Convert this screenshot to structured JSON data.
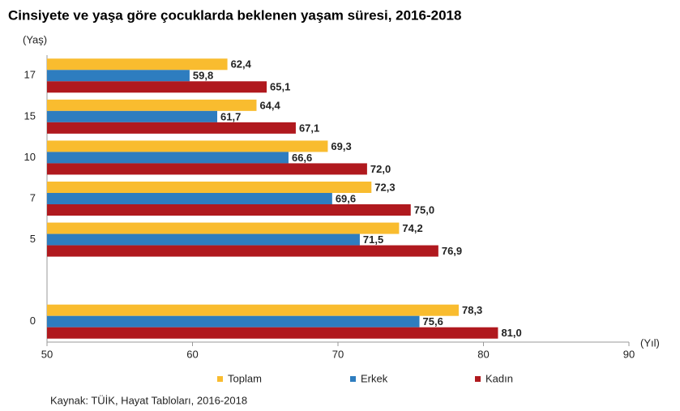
{
  "chart_data": {
    "type": "bar",
    "orientation": "horizontal",
    "title": "Cinsiyete ve yaşa göre çocuklarda beklenen yaşam süresi, 2016-2018",
    "y_label": "(Yaş)",
    "x_label": "(Yıl)",
    "source": "Kaynak: TÜİK, Hayat Tabloları, 2016-2018",
    "categories": [
      "17",
      "15",
      "10",
      "7",
      "5",
      null,
      "0"
    ],
    "series": [
      {
        "name": "Toplam",
        "color": "#f9bc2f",
        "values": [
          62.4,
          64.4,
          69.3,
          72.3,
          74.2,
          null,
          78.3
        ],
        "value_labels": [
          "62,4",
          "64,4",
          "69,3",
          "72,3",
          "74,2",
          null,
          "78,3"
        ]
      },
      {
        "name": "Erkek",
        "color": "#2e7dbf",
        "values": [
          59.8,
          61.7,
          66.6,
          69.6,
          71.5,
          null,
          75.6
        ],
        "value_labels": [
          "59,8",
          "61,7",
          "66,6",
          "69,6",
          "71,5",
          null,
          "75,6"
        ]
      },
      {
        "name": "Kadın",
        "color": "#b0191e",
        "values": [
          65.1,
          67.1,
          72.0,
          75.0,
          76.9,
          null,
          81.0
        ],
        "value_labels": [
          "65,1",
          "67,1",
          "72,0",
          "75,0",
          "76,9",
          null,
          "81,0"
        ]
      }
    ],
    "xlim": [
      50,
      90
    ],
    "xticks": [
      50,
      60,
      70,
      80,
      90
    ],
    "grid": false,
    "legend": "bottom"
  }
}
